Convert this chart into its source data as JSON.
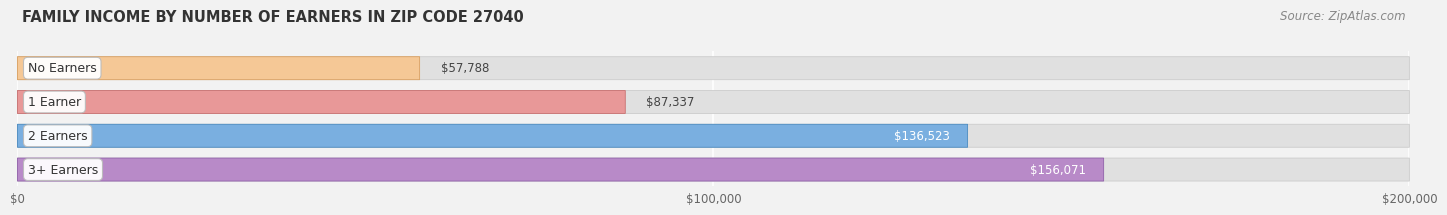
{
  "title": "FAMILY INCOME BY NUMBER OF EARNERS IN ZIP CODE 27040",
  "source": "Source: ZipAtlas.com",
  "categories": [
    "No Earners",
    "1 Earner",
    "2 Earners",
    "3+ Earners"
  ],
  "values": [
    57788,
    87337,
    136523,
    156071
  ],
  "labels": [
    "$57,788",
    "$87,337",
    "$136,523",
    "$156,071"
  ],
  "bar_colors": [
    "#f5c896",
    "#e89898",
    "#7aafe0",
    "#b88ac8"
  ],
  "bar_edge_colors": [
    "#dba060",
    "#c87070",
    "#4a8ac0",
    "#9060aa"
  ],
  "label_inside": [
    false,
    false,
    true,
    true
  ],
  "xlim": [
    0,
    200000
  ],
  "xticks": [
    0,
    100000,
    200000
  ],
  "xtick_labels": [
    "$0",
    "$100,000",
    "$200,000"
  ],
  "bg_color": "#f2f2f2",
  "bar_bg_color": "#e0e0e0",
  "bar_bg_edge": "#cccccc",
  "title_fontsize": 10.5,
  "source_fontsize": 8.5,
  "label_fontsize": 8.5,
  "tick_fontsize": 8.5,
  "category_fontsize": 9
}
